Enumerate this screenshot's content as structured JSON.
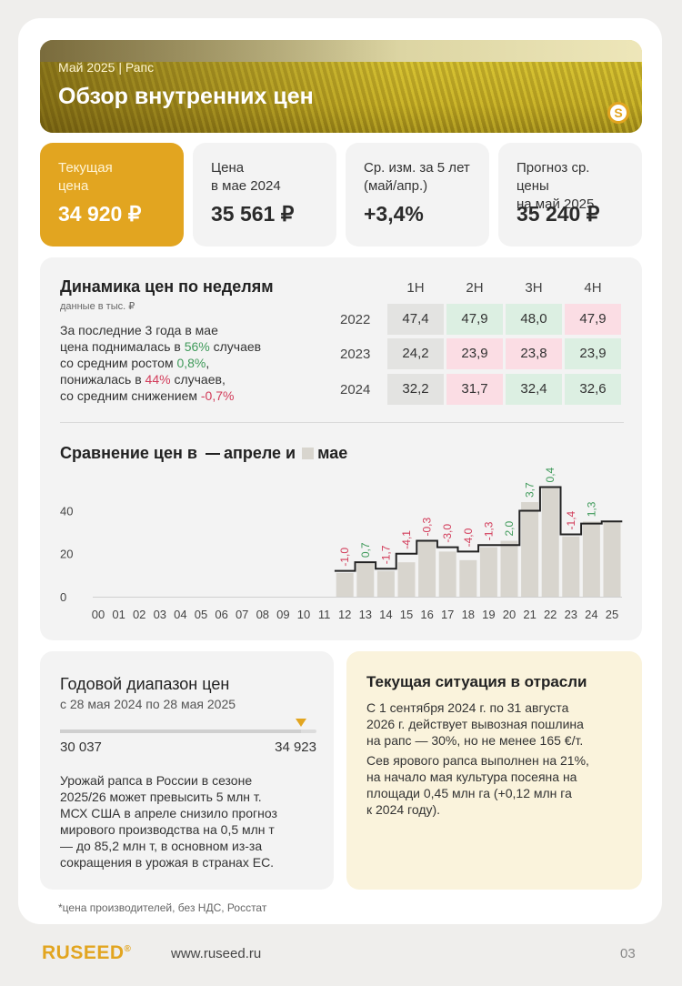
{
  "header": {
    "subtitle": "Май 2025  |  Рапс",
    "title": "Обзор внутренних цен",
    "logo_letter": "S"
  },
  "stats": [
    {
      "label_1": "Текущая",
      "label_2": "цена",
      "value": "34 920 ₽"
    },
    {
      "label_1": "Цена",
      "label_2": "в мае 2024",
      "value": "35 561 ₽"
    },
    {
      "label_1": "Ср. изм. за 5 лет",
      "label_2": "(май/апр.)",
      "value": "+3,4%"
    },
    {
      "label_1": "Прогноз ср. цены",
      "label_2": "на май 2025",
      "value": "35 240 ₽"
    }
  ],
  "weekly": {
    "title": "Динамика цен по неделям",
    "unit_note": "данные в тыс. ₽",
    "text": {
      "l1": "За последние 3 года в мае",
      "l2a": "цена поднималась в ",
      "l2b": "56%",
      "l2c": " случаев",
      "l3a": "со средним ростом ",
      "l3b": "0,8%",
      "l3c": ",",
      "l4a": "понижалась в ",
      "l4b": "44%",
      "l4c": " случаев,",
      "l5a": "со средним снижением ",
      "l5b": "-0,7%"
    },
    "columns": [
      "1Н",
      "2Н",
      "3Н",
      "4Н"
    ],
    "rows": [
      {
        "year": "2022",
        "cells": [
          "47,4",
          "47,9",
          "48,0",
          "47,9"
        ]
      },
      {
        "year": "2023",
        "cells": [
          "24,2",
          "23,9",
          "23,8",
          "23,9"
        ]
      },
      {
        "year": "2024",
        "cells": [
          "32,2",
          "31,7",
          "32,4",
          "32,6"
        ]
      }
    ]
  },
  "comparison": {
    "title_1": "Сравнение цен в",
    "legend_april": "апреле и",
    "legend_may": "мае"
  },
  "chart_data": {
    "type": "bar",
    "categories": [
      "00",
      "01",
      "02",
      "03",
      "04",
      "05",
      "06",
      "07",
      "08",
      "09",
      "10",
      "11",
      "12",
      "13",
      "14",
      "15",
      "16",
      "17",
      "18",
      "19",
      "20",
      "21",
      "22",
      "23",
      "24",
      "25"
    ],
    "series": [
      {
        "name": "мае",
        "values": [
          null,
          null,
          null,
          null,
          null,
          null,
          null,
          null,
          null,
          null,
          null,
          null,
          11,
          16,
          12,
          16,
          26,
          21,
          17,
          23,
          26,
          44,
          51,
          28,
          35,
          35
        ]
      },
      {
        "name": "апреле",
        "values": [
          null,
          null,
          null,
          null,
          null,
          null,
          null,
          null,
          null,
          null,
          null,
          null,
          12,
          16,
          13,
          20,
          26,
          23,
          21,
          24,
          24,
          40,
          51,
          29,
          34,
          35
        ]
      }
    ],
    "change_labels": [
      null,
      null,
      null,
      null,
      null,
      null,
      null,
      null,
      null,
      null,
      null,
      null,
      "-1,0",
      "0,7",
      "-1,7",
      "-4,1",
      "-0,3",
      "-3,0",
      "-4,0",
      "-1,3",
      "2,0",
      "3,7",
      "0,4",
      "-1,4",
      "1,3",
      null
    ],
    "yticks": [
      "0",
      "20",
      "40"
    ],
    "ylim": [
      0,
      55
    ],
    "grid": false
  },
  "range": {
    "title": "Годовой диапазон цен",
    "period": "с 28 мая 2024 по 28 мая 2025",
    "min": "30 037",
    "max": "34 923",
    "position_fraction": 0.94,
    "lines": [
      "Урожай рапса в России в сезоне",
      "2025/26 может превысить 5 млн т.",
      "МСХ США в апреле снизило прогноз",
      "мирового производства на 0,5 млн т",
      "— до 85,2 млн т, в основном из-за",
      "сокращения в урожая в странах ЕС."
    ]
  },
  "situation": {
    "title": "Текущая ситуация в отрасли",
    "p1": [
      "С 1 сентября 2024 г. по 31 августа",
      "2026 г. действует вывозная пошлина",
      "на рапс — 30%, но не менее 165 €/т."
    ],
    "p2": [
      "Сев ярового рапса выполнен на 21%,",
      "на начало мая культура посеяна на",
      "площади 0,45 млн га (+0,12 млн га",
      "к 2024 году)."
    ]
  },
  "footnote": "*цена производителей, без НДС, Росстат",
  "footer": {
    "brand": "RUSEED",
    "url": "www.ruseed.ru",
    "page": "03"
  },
  "colors": {
    "accent": "#e2a520",
    "up": "#3f9a5a",
    "down": "#d23c5a",
    "bar": "#d8d5ce"
  }
}
